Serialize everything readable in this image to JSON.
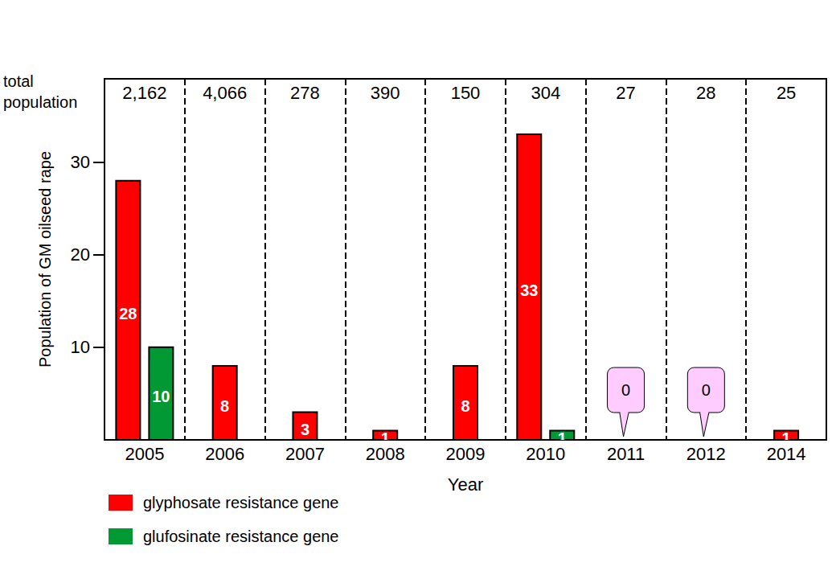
{
  "chart_data": {
    "type": "bar",
    "x_label": "Year",
    "y_label": "Population of GM oilseed rape",
    "categories": [
      "2005",
      "2006",
      "2007",
      "2008",
      "2009",
      "2010",
      "2011",
      "2012",
      "2014"
    ],
    "series": [
      {
        "name": "glyphosate resistance gene",
        "color": "#ff0000",
        "values": [
          28,
          8,
          3,
          1,
          8,
          33,
          0,
          0,
          1
        ]
      },
      {
        "name": "glufosinate resistance gene",
        "color": "#009933",
        "values": [
          10,
          null,
          null,
          null,
          null,
          1,
          null,
          null,
          null
        ]
      }
    ],
    "ylim": [
      0,
      39
    ],
    "yticks": [
      10,
      20,
      30
    ],
    "grid": false,
    "data_labels": true,
    "legend": "bottom",
    "population_title": "total\npopulation",
    "population": [
      {
        "value": 2162,
        "label": "2,162"
      },
      {
        "value": 4066,
        "label": "4,066"
      },
      {
        "value": 278,
        "label": "278"
      },
      {
        "value": 390,
        "label": "390"
      },
      {
        "value": 150,
        "label": "150"
      },
      {
        "value": 304,
        "label": "304"
      },
      {
        "value": 27,
        "label": "27"
      },
      {
        "value": 28,
        "label": "28"
      },
      {
        "value": 25,
        "label": "25"
      }
    ]
  }
}
